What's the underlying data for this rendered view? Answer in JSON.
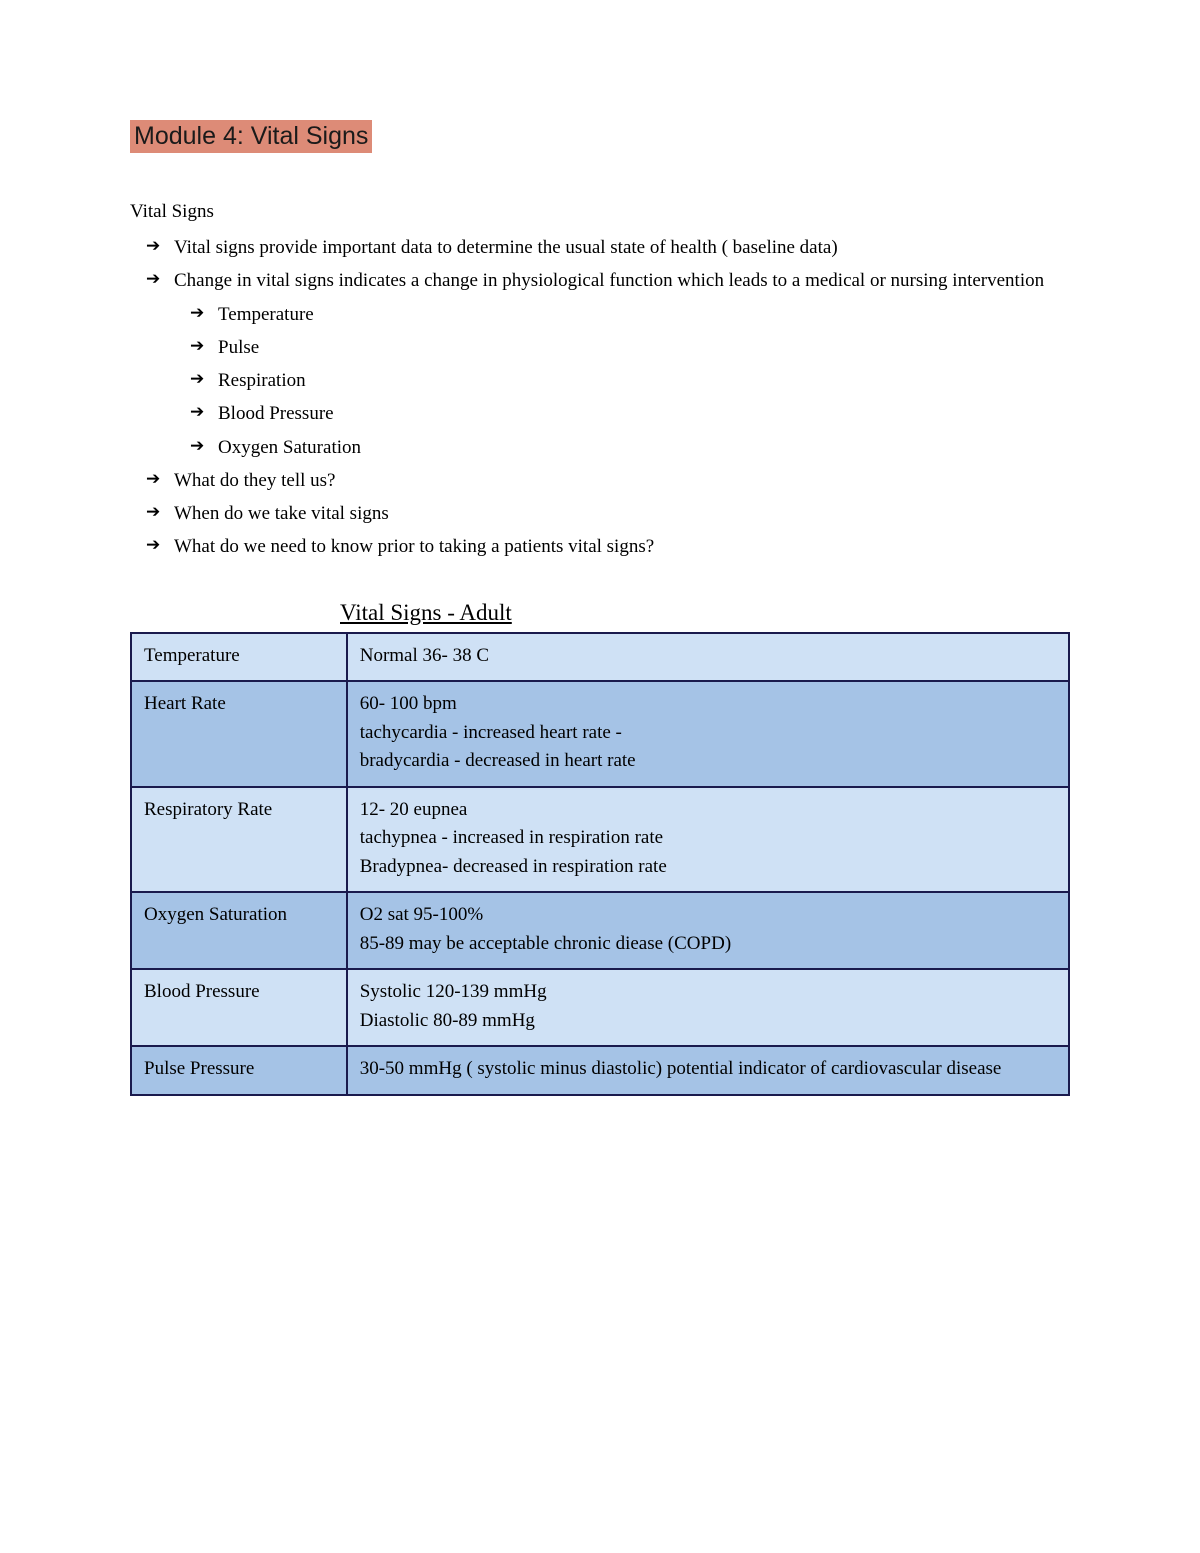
{
  "colors": {
    "title_highlight": "#dd8b77",
    "table_border": "#1a1a4d",
    "row_light": "#cfe1f5",
    "row_dark": "#a5c3e6",
    "background": "#ffffff",
    "text": "#000000"
  },
  "typography": {
    "body_font": "Georgia, serif",
    "title_font": "Trebuchet MS, sans-serif",
    "body_size_pt": 14,
    "title_size_pt": 18
  },
  "module_title": "Module 4: Vital Signs",
  "section_title": "Vital Signs",
  "bullets": {
    "b1": "Vital signs provide important data to determine the usual state of health ( baseline data)",
    "b2": "Change in vital signs indicates a change in physiological function which leads to a medical or nursing intervention",
    "sub1": "Temperature",
    "sub2": "Pulse",
    "sub3": "Respiration",
    "sub4": "Blood Pressure",
    "sub5": "Oxygen Saturation",
    "b3": "What do they tell us?",
    "b4": "When do we take vital signs",
    "b5": "What do we need to know prior to taking a patients vital signs?"
  },
  "table": {
    "title": " Vital Signs - Adult",
    "row_colors": [
      "light",
      "dark",
      "light",
      "dark",
      "light",
      "dark"
    ],
    "col1_width": "23%",
    "rows": [
      {
        "label": "Temperature",
        "value": "Normal 36- 38 C"
      },
      {
        "label": "Heart Rate",
        "value": "60- 100 bpm\ntachycardia - increased heart rate -\nbradycardia - decreased in heart rate"
      },
      {
        "label": "Respiratory Rate",
        "value": "12- 20 eupnea\ntachypnea - increased in respiration rate\nBradypnea- decreased in respiration rate"
      },
      {
        "label": "Oxygen Saturation",
        "value": "O2 sat 95-100%\n85-89 may be acceptable chronic diease (COPD)"
      },
      {
        "label": "Blood Pressure",
        "value": "Systolic 120-139 mmHg\nDiastolic 80-89 mmHg"
      },
      {
        "label": "Pulse Pressure",
        "value": "30-50 mmHg ( systolic minus diastolic) potential indicator of cardiovascular disease"
      }
    ]
  }
}
